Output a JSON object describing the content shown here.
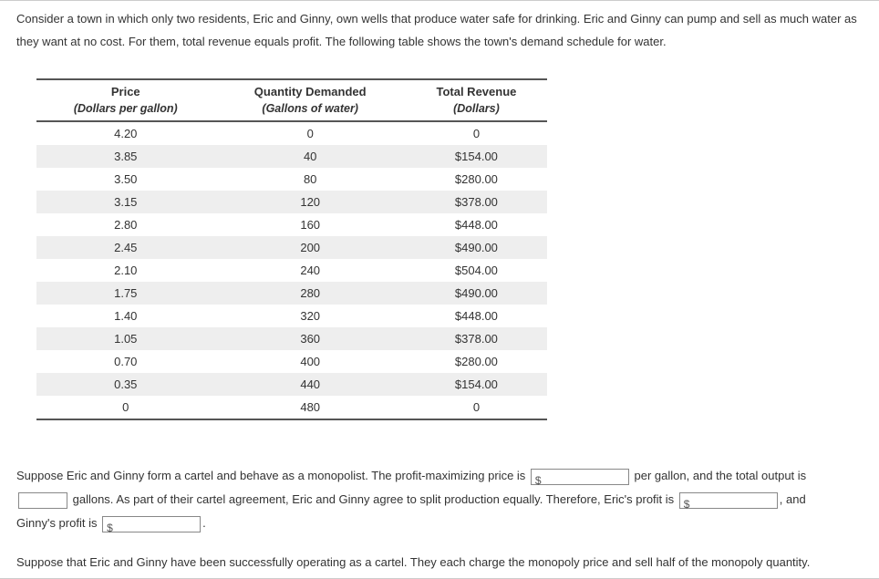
{
  "intro": "Consider a town in which only two residents, Eric and Ginny, own wells that produce water safe for drinking. Eric and Ginny can pump and sell as much water as they want at no cost. For them, total revenue equals profit. The following table shows the town's demand schedule for water.",
  "table": {
    "headers": {
      "price_main": "Price",
      "price_sub": "(Dollars per gallon)",
      "qty_main": "Quantity Demanded",
      "qty_sub": "(Gallons of water)",
      "rev_main": "Total Revenue",
      "rev_sub": "(Dollars)"
    },
    "col_widths": [
      "34%",
      "34%",
      "32%"
    ],
    "row_shade_odd_color": "#eeeeee",
    "border_color": "#555555",
    "rows": [
      {
        "price": "4.20",
        "qty": "0",
        "rev": "0",
        "shaded": false
      },
      {
        "price": "3.85",
        "qty": "40",
        "rev": "$154.00",
        "shaded": true
      },
      {
        "price": "3.50",
        "qty": "80",
        "rev": "$280.00",
        "shaded": false
      },
      {
        "price": "3.15",
        "qty": "120",
        "rev": "$378.00",
        "shaded": true
      },
      {
        "price": "2.80",
        "qty": "160",
        "rev": "$448.00",
        "shaded": false
      },
      {
        "price": "2.45",
        "qty": "200",
        "rev": "$490.00",
        "shaded": true
      },
      {
        "price": "2.10",
        "qty": "240",
        "rev": "$504.00",
        "shaded": false
      },
      {
        "price": "1.75",
        "qty": "280",
        "rev": "$490.00",
        "shaded": true
      },
      {
        "price": "1.40",
        "qty": "320",
        "rev": "$448.00",
        "shaded": false
      },
      {
        "price": "1.05",
        "qty": "360",
        "rev": "$378.00",
        "shaded": true
      },
      {
        "price": "0.70",
        "qty": "400",
        "rev": "$280.00",
        "shaded": false
      },
      {
        "price": "0.35",
        "qty": "440",
        "rev": "$154.00",
        "shaded": true
      },
      {
        "price": "0",
        "qty": "480",
        "rev": "0",
        "shaded": false
      }
    ]
  },
  "para": {
    "s1a": "Suppose Eric and Ginny form a cartel and behave as a monopolist. The profit-maximizing price is ",
    "s1b": " per gallon, and the total output is ",
    "s1c": " gallons. As part of their cartel agreement, Eric and Ginny agree to split production equally. Therefore, Eric's profit is ",
    "s1d": ", and Ginny's profit is ",
    "s1e": "."
  },
  "footer": "Suppose that Eric and Ginny have been successfully operating as a cartel. They each charge the monopoly price and sell half of the monopoly quantity."
}
